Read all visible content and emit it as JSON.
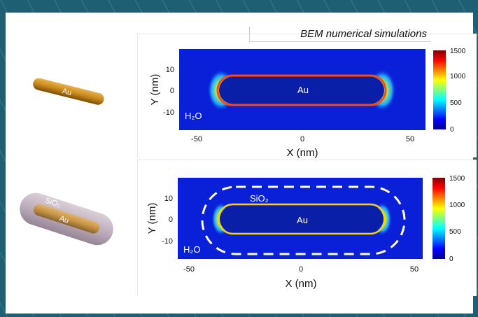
{
  "header": {
    "title": "BEM numerical simulations"
  },
  "top_panel": {
    "rod_label": "Au",
    "medium_label": "H₂O",
    "y_axis_label": "Y (nm)",
    "x_axis_label": "X (nm)",
    "y_ticks": [
      "10",
      "0",
      "-10"
    ],
    "x_ticks": [
      "-50",
      "0",
      "50"
    ],
    "colorbar_ticks": [
      "1500",
      "1000",
      "500",
      "0"
    ]
  },
  "bottom_panel": {
    "rod_label": "Au",
    "shell_label": "SiO₂",
    "medium_label": "H₂O",
    "y_axis_label": "Y (nm)",
    "x_axis_label": "X (nm)",
    "y_ticks": [
      "10",
      "0",
      "-10"
    ],
    "x_ticks": [
      "-50",
      "0",
      "50"
    ],
    "colorbar_ticks": [
      "1500",
      "1000",
      "500",
      "0"
    ]
  },
  "left_illustrations": {
    "bare_rod_label": "Au",
    "coated_shell_label": "SiO₂",
    "coated_rod_label": "Au"
  },
  "colors": {
    "background": "#1f5f73",
    "field_base": "#0a1fd8",
    "rod_gold": "#c98a1c",
    "shell_gray": "#b9a7b7"
  }
}
